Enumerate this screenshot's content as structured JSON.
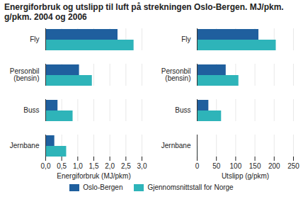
{
  "title": "Energiforbruk og utslipp til luft på strekningen Oslo-Bergen. MJ/pkm. g/pkm. 2004 og 2006",
  "chart_data": [
    {
      "type": "bar",
      "orientation": "horizontal",
      "grid": true,
      "legend": "bottom",
      "categories": [
        "Fly",
        "Personbil\n(bensin)",
        "Buss",
        "Jernbane"
      ],
      "series": [
        {
          "name": "Oslo-Bergen",
          "color": "#1f5f9e",
          "values": [
            2.25,
            1.05,
            0.38,
            0.28
          ]
        },
        {
          "name": "Gjennomsnittstall for Norge",
          "color": "#2eb4b9",
          "values": [
            2.75,
            1.45,
            0.85,
            0.65
          ]
        }
      ],
      "xlabel": "Energiforbruk (MJ/pkm)",
      "xlim": [
        0,
        3
      ],
      "xticks": [
        {
          "value": 0,
          "label": "0,0"
        },
        {
          "value": 0.5,
          "label": "0,5"
        },
        {
          "value": 1,
          "label": "1,0"
        },
        {
          "value": 1.5,
          "label": "1,5"
        },
        {
          "value": 2,
          "label": "2,0"
        },
        {
          "value": 2.5,
          "label": "2,5"
        },
        {
          "value": 3,
          "label": "3,0"
        }
      ]
    },
    {
      "type": "bar",
      "orientation": "horizontal",
      "grid": true,
      "legend": "bottom",
      "categories": [
        "Fly",
        "Personbil\n(bensin)",
        "Buss",
        "Jernbane"
      ],
      "series": [
        {
          "name": "Oslo-Bergen",
          "color": "#1f5f9e",
          "values": [
            160,
            75,
            30,
            1
          ]
        },
        {
          "name": "Gjennomsnittstall for Norge",
          "color": "#2eb4b9",
          "values": [
            205,
            108,
            63,
            2
          ]
        }
      ],
      "xlabel": "Utslipp (g/pkm)",
      "xlim": [
        0,
        250
      ],
      "xticks": [
        0,
        50,
        100,
        150,
        200,
        250
      ]
    }
  ]
}
